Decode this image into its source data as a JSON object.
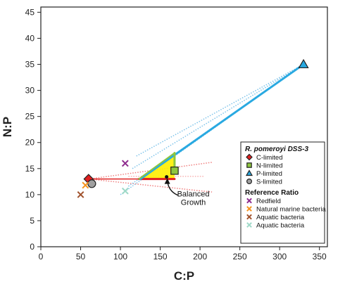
{
  "chart_data": {
    "type": "scatter",
    "xlabel": "C:P",
    "ylabel": "N:P",
    "xlim": [
      0,
      360
    ],
    "ylim": [
      0,
      46
    ],
    "x_ticks": [
      0,
      50,
      100,
      150,
      200,
      250,
      300,
      350
    ],
    "y_ticks": [
      0,
      5,
      10,
      15,
      20,
      25,
      30,
      35,
      40,
      45
    ],
    "grid": false,
    "legend_position": "lower-right",
    "legend_groups": [
      {
        "title": "R. pomeroyi DSS-3",
        "entries": [
          {
            "name": "C-limited",
            "marker": "diamond",
            "color": "#e02020"
          },
          {
            "name": "N-limited",
            "marker": "square",
            "color": "#8dc63f"
          },
          {
            "name": "P-limited",
            "marker": "triangle",
            "color": "#29a9e1"
          },
          {
            "name": "S-limited",
            "marker": "circle",
            "color": "#a0a0a0"
          }
        ]
      },
      {
        "title": "Reference Ratio",
        "entries": [
          {
            "name": "Redfield",
            "marker": "x",
            "color": "#8e2c8e"
          },
          {
            "name": "Natural marine bacteria",
            "marker": "x",
            "color": "#f7941d"
          },
          {
            "name": "Aquatic bacteria",
            "marker": "x",
            "color": "#a0522d"
          },
          {
            "name": "Aquatic bacteria",
            "marker": "x",
            "color": "#9fd9c8"
          }
        ]
      }
    ],
    "points": [
      {
        "name": "C-limited",
        "x": 60,
        "y": 13,
        "marker": "diamond",
        "color": "#e02020"
      },
      {
        "name": "N-limited",
        "x": 168,
        "y": 14.6,
        "marker": "square",
        "color": "#8dc63f"
      },
      {
        "name": "P-limited",
        "x": 330,
        "y": 35,
        "marker": "triangle",
        "color": "#29a9e1"
      },
      {
        "name": "S-limited",
        "x": 64,
        "y": 12.1,
        "marker": "circle",
        "color": "#a0a0a0"
      },
      {
        "name": "Redfield",
        "x": 106,
        "y": 16,
        "marker": "x",
        "color": "#8e2c8e"
      },
      {
        "name": "Natural marine bacteria",
        "x": 56,
        "y": 11.8,
        "marker": "x",
        "color": "#f7941d"
      },
      {
        "name": "Aquatic bacteria",
        "x": 50,
        "y": 10,
        "marker": "x",
        "color": "#a0522d"
      },
      {
        "name": "Aquatic bacteria",
        "x": 106,
        "y": 10.7,
        "marker": "x",
        "color": "#9fd9c8"
      }
    ],
    "balanced_growth": {
      "triangle": [
        [
          123,
          13
        ],
        [
          168,
          13
        ],
        [
          168,
          18
        ]
      ],
      "fill": "#ffef00",
      "point": {
        "x": 158,
        "y": 13.4
      },
      "arrow_from": {
        "x": 165,
        "y": 10.7
      },
      "label": [
        "Balanced",
        "Growth"
      ]
    },
    "lines": [
      {
        "from": [
          123,
          13
        ],
        "to": [
          168,
          13
        ],
        "color": "#e02020",
        "width": 3
      },
      {
        "from": [
          60,
          13
        ],
        "to": [
          123,
          13
        ],
        "color": "#e02020",
        "width": 1.5
      },
      {
        "from": [
          125,
          13
        ],
        "to": [
          330,
          35
        ],
        "color": "#29a9e1",
        "width": 3
      },
      {
        "from": [
          168,
          14.6
        ],
        "to": [
          168,
          18
        ],
        "color": "#8dc63f",
        "width": 3
      },
      {
        "from": [
          123,
          13
        ],
        "to": [
          168,
          18
        ],
        "color": "#8dc63f",
        "width": 2
      }
    ],
    "confidence_lines": [
      {
        "from": [
          60,
          13
        ],
        "to": [
          215,
          16.2
        ],
        "color": "#f08080"
      },
      {
        "from": [
          60,
          13
        ],
        "to": [
          215,
          10.5
        ],
        "color": "#f08080"
      },
      {
        "from": [
          100,
          10
        ],
        "to": [
          330,
          35
        ],
        "color": "#7fc4ea"
      },
      {
        "from": [
          115,
          15
        ],
        "to": [
          330,
          35
        ],
        "color": "#7fc4ea"
      },
      {
        "from": [
          120,
          17.4
        ],
        "to": [
          330,
          35
        ],
        "color": "#7fc4ea"
      },
      {
        "from": [
          110,
          11.6
        ],
        "to": [
          330,
          35
        ],
        "color": "#7fc4ea"
      },
      {
        "from": [
          110,
          13.5
        ],
        "to": [
          205,
          13.5
        ],
        "color": "#f7b0b0"
      },
      {
        "from": [
          168,
          18
        ],
        "to": [
          168,
          15
        ],
        "color": "#b6e08a"
      }
    ]
  }
}
